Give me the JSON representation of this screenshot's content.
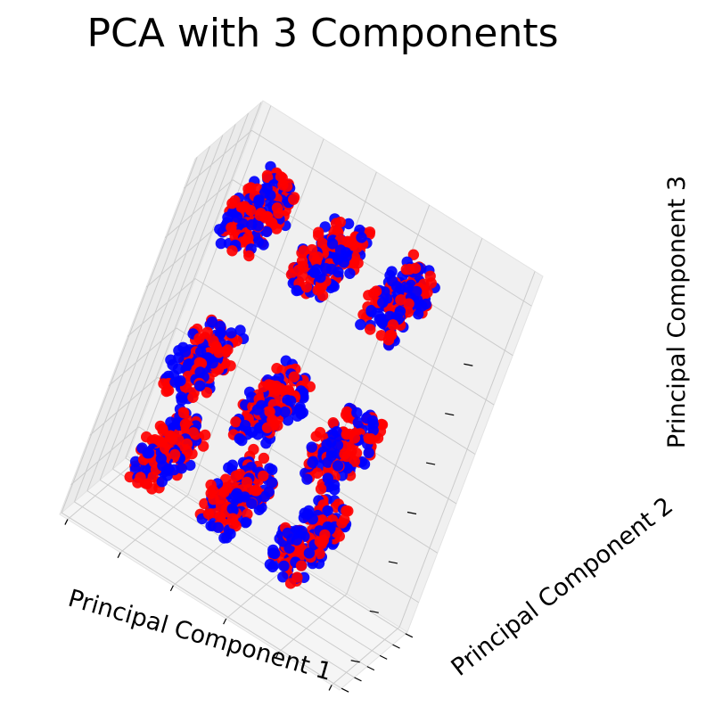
{
  "chart_data": {
    "type": "scatter",
    "projection": "3d",
    "title": "PCA with 3 Components",
    "xlabel": "Principal Component 1",
    "ylabel": "Principal Component 2",
    "zlabel": "Principal Component 3",
    "xlim": [
      0,
      6
    ],
    "ylim": [
      0,
      6
    ],
    "zlim": [
      0,
      6
    ],
    "grid": true,
    "legend": "none",
    "tick_labels_shown": false,
    "marker_colors": [
      "#ff0000",
      "#0000ff"
    ],
    "clusters": [
      {
        "x": 1.0,
        "y": 1.0,
        "z": 1.0
      },
      {
        "x": 2.5,
        "y": 1.0,
        "z": 1.0
      },
      {
        "x": 4.0,
        "y": 1.0,
        "z": 1.0
      },
      {
        "x": 1.0,
        "y": 2.5,
        "z": 1.0
      },
      {
        "x": 2.5,
        "y": 2.5,
        "z": 1.0
      },
      {
        "x": 4.0,
        "y": 2.5,
        "z": 1.0
      },
      {
        "x": 1.0,
        "y": 4.0,
        "z": 1.0
      },
      {
        "x": 2.5,
        "y": 4.0,
        "z": 1.0
      },
      {
        "x": 4.0,
        "y": 4.0,
        "z": 1.0
      },
      {
        "x": 1.0,
        "y": 1.0,
        "z": 2.5
      },
      {
        "x": 2.5,
        "y": 1.0,
        "z": 2.5
      },
      {
        "x": 4.0,
        "y": 1.0,
        "z": 2.5
      },
      {
        "x": 1.0,
        "y": 2.5,
        "z": 2.5
      },
      {
        "x": 2.5,
        "y": 2.5,
        "z": 2.5
      },
      {
        "x": 4.0,
        "y": 2.5,
        "z": 2.5
      },
      {
        "x": 1.0,
        "y": 4.0,
        "z": 2.5
      },
      {
        "x": 2.5,
        "y": 4.0,
        "z": 2.5
      },
      {
        "x": 4.0,
        "y": 4.0,
        "z": 2.5
      },
      {
        "x": 1.0,
        "y": 1.0,
        "z": 5.0
      },
      {
        "x": 2.5,
        "y": 1.0,
        "z": 5.0
      },
      {
        "x": 4.0,
        "y": 1.0,
        "z": 5.0
      },
      {
        "x": 1.0,
        "y": 2.5,
        "z": 5.0
      },
      {
        "x": 2.5,
        "y": 2.5,
        "z": 5.0
      },
      {
        "x": 4.0,
        "y": 2.5,
        "z": 5.0
      },
      {
        "x": 1.0,
        "y": 4.0,
        "z": 5.0
      },
      {
        "x": 2.5,
        "y": 4.0,
        "z": 5.0
      },
      {
        "x": 4.0,
        "y": 4.0,
        "z": 5.0
      }
    ],
    "cluster_spread": 0.35,
    "points_per_cluster": 55
  }
}
